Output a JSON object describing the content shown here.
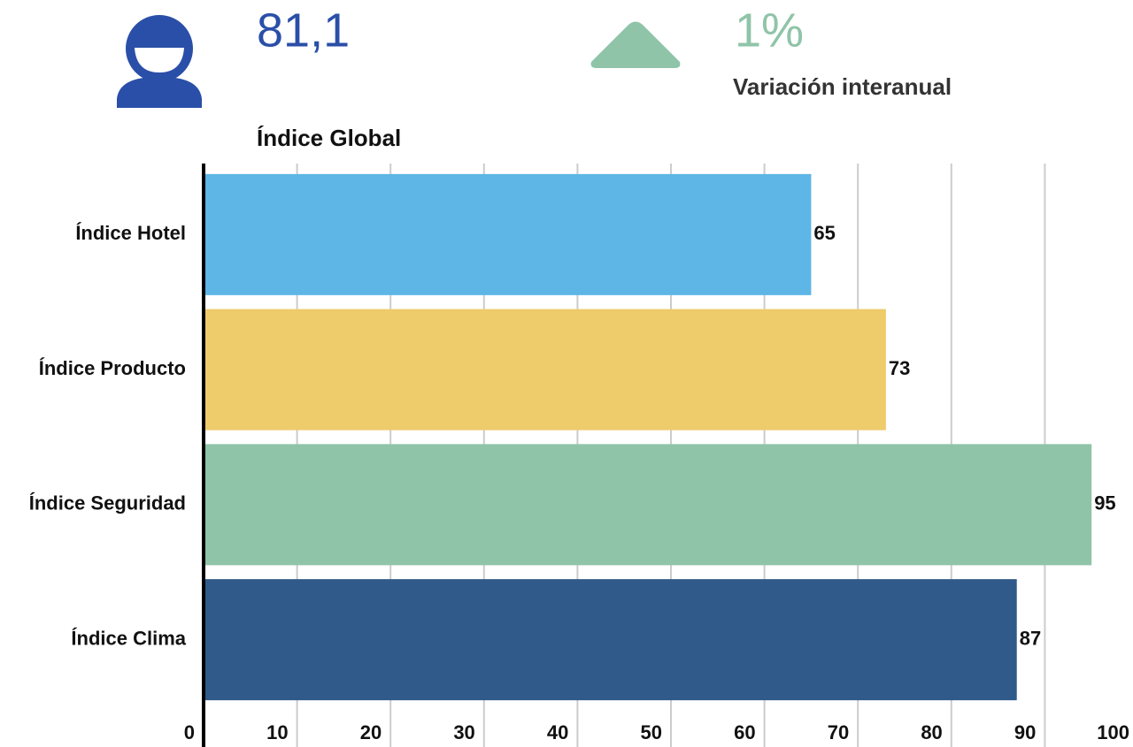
{
  "kpis": [
    {
      "value": "81,1",
      "label": "Índice Global"
    },
    {
      "value": "1%",
      "label": "Variación interanual"
    }
  ],
  "chart_data": {
    "type": "bar",
    "orientation": "horizontal",
    "categories": [
      "Índice Hotel",
      "Índice Producto",
      "Índice Seguridad",
      "Índice Clima"
    ],
    "values": [
      65,
      73,
      95,
      87
    ],
    "colors": [
      "#5db6e5",
      "#eecb6b",
      "#8fc4a8",
      "#305a8a"
    ],
    "xlim": [
      0,
      100
    ],
    "xticks": [
      0,
      10,
      20,
      30,
      40,
      50,
      60,
      70,
      80,
      90,
      100
    ],
    "grid": true
  }
}
